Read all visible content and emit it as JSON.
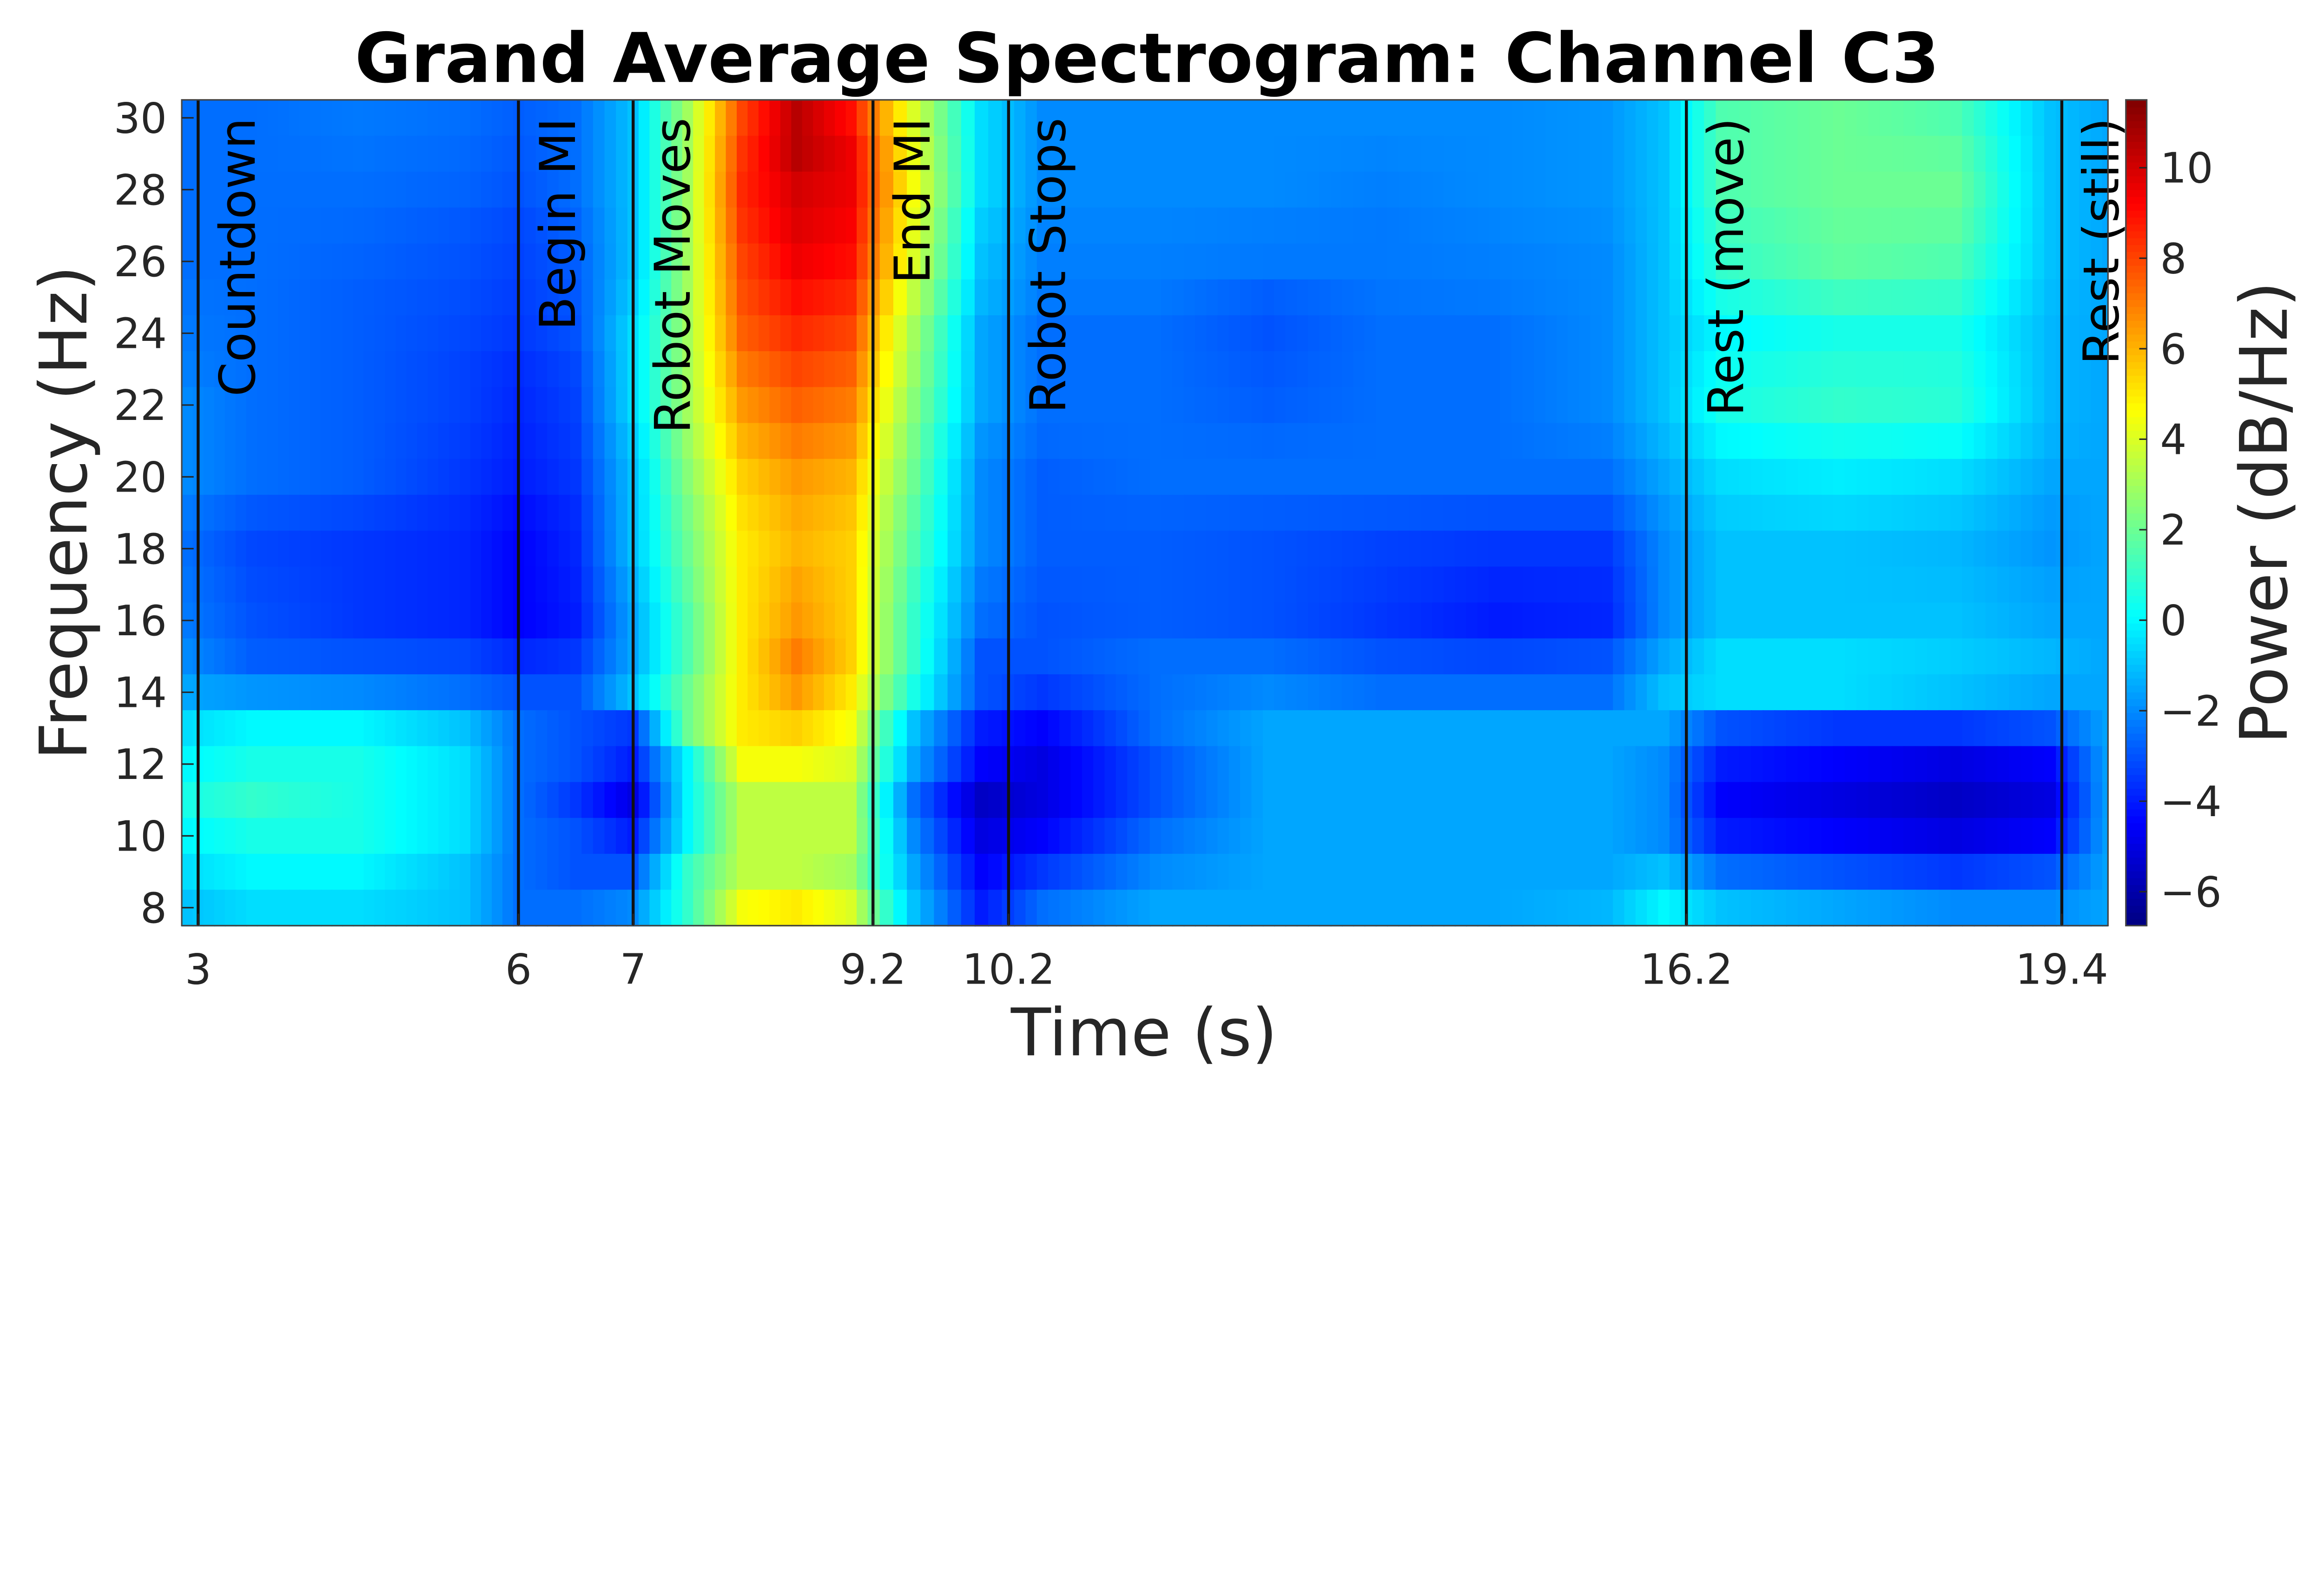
{
  "chart_data": {
    "type": "heatmap",
    "title": "Grand Average Spectrogram: Channel C3",
    "xlabel": "Time (s)",
    "ylabel": "Frequency (Hz)",
    "colorbar_label": "Power (dB/Hz)",
    "colormap": "jet",
    "xlim": [
      2.85,
      19.8
    ],
    "ylim": [
      7.5,
      30.5
    ],
    "clim": [
      -6.75,
      11.5
    ],
    "x_ticks": [
      "3",
      "6",
      "7",
      "9.2",
      "10.2",
      "16.2",
      "19.4"
    ],
    "x_tick_values": [
      3,
      6,
      7,
      9.2,
      10.2,
      16.2,
      19.4
    ],
    "y_ticks": [
      "8",
      "10",
      "12",
      "14",
      "16",
      "18",
      "20",
      "22",
      "24",
      "26",
      "28",
      "30"
    ],
    "colorbar_ticks": [
      "-6",
      "-4",
      "-2",
      "0",
      "2",
      "4",
      "6",
      "8",
      "10"
    ],
    "events": [
      {
        "time": 3,
        "label": "Countdown"
      },
      {
        "time": 6,
        "label": "Begin MI"
      },
      {
        "time": 7,
        "label": "Robot Moves"
      },
      {
        "time": 9.2,
        "label": "End MI"
      },
      {
        "time": 10.2,
        "label": "Robot Stops"
      },
      {
        "time": 16.2,
        "label": "Rest (move)"
      },
      {
        "time": 19.4,
        "label": "Rest (still)"
      }
    ],
    "times": [
      2.9,
      3.5,
      4.5,
      5.5,
      6.0,
      6.5,
      7.0,
      7.5,
      8.0,
      8.5,
      9.0,
      9.5,
      10.0,
      10.5,
      11.5,
      12.5,
      13.5,
      14.5,
      15.5,
      16.0,
      16.5,
      17.5,
      18.5,
      19.3,
      19.8
    ],
    "frequencies": [
      30,
      29,
      28,
      27,
      26,
      25,
      24,
      23,
      22,
      21,
      20,
      19,
      18,
      17,
      16,
      15,
      14,
      13,
      12,
      11,
      10,
      9,
      8
    ],
    "power_db": [
      [
        -2.5,
        -2.5,
        -2.3,
        -2.5,
        -2.8,
        -2.5,
        -1,
        3,
        8,
        10.5,
        9,
        4,
        -0.5,
        -2,
        -2,
        -2,
        -2,
        -2,
        -1.8,
        -1,
        1.5,
        2,
        1.5,
        -1,
        -1.5
      ],
      [
        -2.5,
        -2.5,
        -2.4,
        -2.6,
        -2.9,
        -2.5,
        -1,
        3,
        8.3,
        10.5,
        9.5,
        4.3,
        -0.5,
        -2,
        -2,
        -2,
        -2.1,
        -2,
        -1.8,
        -1,
        1.5,
        2,
        1.8,
        -1,
        -1.5
      ],
      [
        -2.5,
        -2.5,
        -2.5,
        -2.7,
        -3,
        -2.5,
        -1,
        3,
        8.5,
        10,
        9.5,
        4.5,
        -0.5,
        -2,
        -2,
        -2,
        -2.2,
        -2,
        -1.8,
        -1,
        1.5,
        2,
        2,
        -1,
        -1.5
      ],
      [
        -2.5,
        -2.5,
        -2.6,
        -2.9,
        -3.2,
        -2.7,
        -1,
        3,
        8.3,
        9.8,
        9.3,
        4.2,
        -0.8,
        -2.1,
        -2.1,
        -2.2,
        -2.3,
        -2.1,
        -1.9,
        -1,
        1.2,
        1.9,
        1.8,
        -1,
        -1.5
      ],
      [
        -2.5,
        -2.5,
        -2.7,
        -3,
        -3.3,
        -2.8,
        -1,
        3,
        8,
        9.5,
        9,
        4,
        -1,
        -2.2,
        -2.2,
        -2.3,
        -2.3,
        -2.2,
        -2,
        -1,
        1,
        1.8,
        1.5,
        -1,
        -1.5
      ],
      [
        -2.4,
        -2.5,
        -2.8,
        -3.1,
        -3.4,
        -2.9,
        -0.8,
        3,
        7.8,
        9,
        8.5,
        3.5,
        -1.2,
        -2.3,
        -2.3,
        -2.8,
        -2.4,
        -2.3,
        -2,
        -1,
        0.5,
        1.2,
        1,
        -1.1,
        -1.5
      ],
      [
        -2.3,
        -2.5,
        -2.8,
        -3.2,
        -3.5,
        -3,
        -0.5,
        3,
        7.5,
        8.5,
        8,
        3,
        -1.5,
        -2.5,
        -2.5,
        -3,
        -2.5,
        -2.5,
        -2,
        -1,
        0,
        0.5,
        0.5,
        -1.2,
        -1.5
      ],
      [
        -2.2,
        -2.5,
        -2.8,
        -3.3,
        -3.7,
        -3.2,
        -0.5,
        3,
        7,
        8,
        7.5,
        2.8,
        -1.5,
        -2.5,
        -2.5,
        -2.9,
        -2.5,
        -2.5,
        -2,
        -1,
        0.3,
        0.8,
        0.7,
        -1.2,
        -1.5
      ],
      [
        -2,
        -2.5,
        -2.8,
        -3.3,
        -3.8,
        -3.3,
        -0.5,
        3,
        6.5,
        7.5,
        7,
        2.5,
        -1.5,
        -2.5,
        -2.5,
        -2.8,
        -2.5,
        -2.5,
        -2,
        -1,
        0.5,
        1,
        0.8,
        -1.2,
        -1.5
      ],
      [
        -2,
        -2.5,
        -2.8,
        -3.4,
        -3.9,
        -3.4,
        -0.8,
        2.8,
        6,
        7,
        6.5,
        2.2,
        -1.8,
        -2.6,
        -2.5,
        -2.6,
        -2.5,
        -2.5,
        -2.2,
        -1.2,
        0,
        0.4,
        0.2,
        -1.3,
        -1.5
      ],
      [
        -2,
        -2.5,
        -2.8,
        -3.5,
        -4,
        -3.5,
        -1,
        2.5,
        5.5,
        6.5,
        6,
        2,
        -2,
        -2.8,
        -2.5,
        -2.5,
        -2.5,
        -2.5,
        -2.5,
        -1.5,
        -0.5,
        -0.2,
        -0.5,
        -1.5,
        -1.5
      ],
      [
        -2.3,
        -2.9,
        -3.2,
        -3.7,
        -4.3,
        -3.7,
        -1,
        2.2,
        5.2,
        6.2,
        5.7,
        1.7,
        -2,
        -2.8,
        -2.7,
        -2.8,
        -2.9,
        -3,
        -3,
        -1.8,
        -0.8,
        -0.6,
        -0.9,
        -1.7,
        -1.5
      ],
      [
        -2.5,
        -3.2,
        -3.5,
        -3.8,
        -4.5,
        -3.8,
        -1,
        2,
        5,
        6,
        5.5,
        1.5,
        -2,
        -2.8,
        -2.8,
        -3,
        -3.3,
        -3.5,
        -3.5,
        -2,
        -1,
        -1,
        -1.2,
        -1.8,
        -1.5
      ],
      [
        -2.4,
        -3.1,
        -3.5,
        -3.8,
        -4.5,
        -3.9,
        -1.3,
        1.8,
        5,
        6.3,
        5.5,
        1.2,
        -2.3,
        -2.9,
        -2.8,
        -3,
        -3.4,
        -3.8,
        -3.7,
        -2,
        -1,
        -1,
        -1.1,
        -1.6,
        -1.5
      ],
      [
        -2.3,
        -3,
        -3.5,
        -3.8,
        -4.5,
        -4,
        -1.5,
        1.5,
        5,
        6.5,
        5.5,
        1,
        -2.5,
        -3,
        -2.8,
        -3,
        -3.5,
        -4,
        -3.8,
        -2,
        -1,
        -1,
        -1,
        -1.5,
        -1.5
      ],
      [
        -2,
        -2.8,
        -3,
        -3.2,
        -3.8,
        -3.5,
        -1.5,
        1.5,
        5,
        7,
        5.5,
        1,
        -3,
        -3,
        -2.5,
        -2.5,
        -3,
        -3.2,
        -3,
        -1.5,
        -0.5,
        -0.5,
        -0.8,
        -1.2,
        -1.5
      ],
      [
        -1.5,
        -1.8,
        -2,
        -2.5,
        -3,
        -3,
        -1,
        2,
        5,
        6.5,
        5,
        0.5,
        -3,
        -3.5,
        -2.5,
        -2,
        -2.5,
        -2.5,
        -2.5,
        -1,
        -0.5,
        -0.5,
        -1,
        -1.5,
        -1.5
      ],
      [
        -0.5,
        0,
        0,
        -1,
        -2.5,
        -3,
        -3.5,
        2,
        5,
        5.5,
        4.5,
        -1,
        -4,
        -4.5,
        -2.5,
        -1.5,
        -1.5,
        -1.5,
        -1.5,
        -1.5,
        -3,
        -3.5,
        -3.5,
        -3,
        -1.5
      ],
      [
        0,
        0.5,
        0.5,
        -0.5,
        -2.5,
        -3,
        -4,
        0,
        4.5,
        4.5,
        4,
        -1.5,
        -4.5,
        -5,
        -3,
        -1.5,
        -1.5,
        -1.5,
        -1.5,
        -2,
        -4,
        -4.5,
        -5,
        -4.5,
        -1.5
      ],
      [
        0.5,
        1,
        0.5,
        -0.5,
        -2.5,
        -3.5,
        -5,
        0,
        3.5,
        3.5,
        3.5,
        -2.5,
        -5.5,
        -5,
        -3,
        -1.5,
        -1.5,
        -1.5,
        -1.5,
        -2,
        -4.5,
        -5,
        -5.5,
        -5,
        -1.5
      ],
      [
        0,
        0.5,
        0.5,
        -0.5,
        -2.5,
        -3,
        -4,
        0,
        3.5,
        3.5,
        3.5,
        -2,
        -5,
        -4.5,
        -2.5,
        -1.5,
        -1.5,
        -1.5,
        -1.5,
        -2,
        -4,
        -4.5,
        -5,
        -4.5,
        -1.5
      ],
      [
        -0.5,
        0,
        0,
        -1,
        -2.5,
        -3,
        -3,
        1,
        3.5,
        3.5,
        3,
        -1.5,
        -4.5,
        -3.5,
        -2,
        -1.5,
        -1.5,
        -1.5,
        -1.5,
        -1,
        -2.5,
        -3,
        -3.5,
        -3,
        -1.5
      ],
      [
        -1,
        -0.5,
        -0.5,
        -1,
        -2.5,
        -2.5,
        -2,
        1,
        4.5,
        5,
        4,
        -1,
        -4,
        -2.5,
        -1.5,
        -1.5,
        -1.5,
        -1.5,
        -1.2,
        0,
        -1,
        -1.5,
        -2,
        -2,
        -1.5
      ]
    ]
  }
}
